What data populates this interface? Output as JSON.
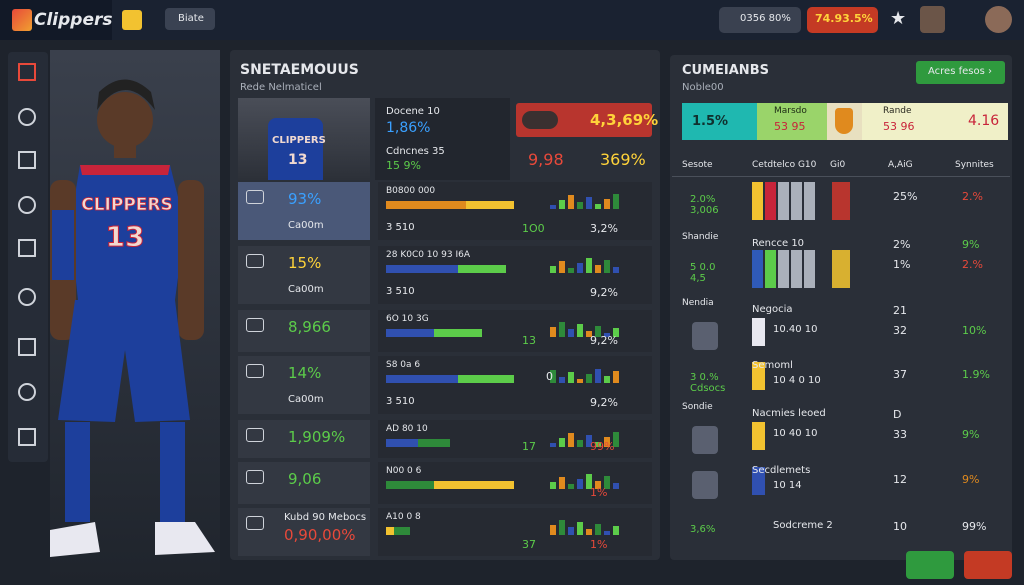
{
  "top_bar": {
    "logo": "Clippers",
    "tab": "Biate",
    "stat_pill": "0356 80%",
    "alert_pill": "74.93.5%"
  },
  "player_card": {
    "jersey_team": "CLIPPERS",
    "jersey_number": "13"
  },
  "stats_panel": {
    "title": "SNETAEMOUUS",
    "subtitle": "Rede Nelmaticel",
    "thumb_team": "CLIPPERS",
    "thumb_number": "13",
    "summary": {
      "label1": "Docene 10",
      "value1": "1,86%",
      "label2": "Cdncnes 35",
      "value2": "15 9%",
      "highlight": "4,3,69%",
      "mid": "9,98",
      "right": "369%"
    },
    "rows": [
      {
        "tile_value": "93%",
        "tile_label": "Ca00m",
        "bar_label": "B0800 000",
        "sub_left": "3 510",
        "sub_mid": "1O0",
        "sub_right": "3,2%"
      },
      {
        "tile_value": "15%",
        "tile_label": "Ca00m",
        "bar_label": "28 K0C0 10 93 I6A",
        "sub_left": "3 510",
        "sub_right": "9,2%"
      },
      {
        "tile_value": "8,966",
        "bar_label": "6O 10 3G",
        "sub_mid": "13",
        "sub_right": "9,2%"
      },
      {
        "tile_value": "14%",
        "tile_label": "Ca00m",
        "bar_label": "S8 0a 6",
        "bar_end": "0",
        "sub_left": "3 510",
        "sub_right": "9,2%"
      },
      {
        "tile_value": "1,909%",
        "bar_label": "AD 80 10",
        "sub_mid": "17",
        "sub_right": "99%"
      },
      {
        "tile_value": "9,06",
        "bar_label": "N00 0 6",
        "sub_right": "1%"
      },
      {
        "tile_label": "Kubd 90 Mebocs",
        "tile_value": "0,90,00%",
        "bar_label": "A10 0 8",
        "sub_mid": "37",
        "sub_right": "1%"
      }
    ]
  },
  "standings_panel": {
    "title": "CUMEIANBS",
    "subtitle": "Noble00",
    "button": "Acres fesos ›",
    "summary": {
      "left": "1.5%",
      "mid_label": "Marsdo",
      "mid_value": "53 95",
      "right_label": "Rande",
      "right_value": "53 96",
      "end": "4.16"
    },
    "header": [
      "Sesote",
      "Cetdtelco G10",
      "Gi0",
      "A,AiG",
      "Synnites"
    ],
    "rows": [
      {
        "badge": "2.0% 3,006",
        "value": "25%",
        "pct": "2.%"
      },
      {
        "label": "Shandie",
        "name": "Rencce 10",
        "value": "2%",
        "pct": "9%"
      },
      {
        "badge": "5 0.0 4,5",
        "value": "1%",
        "pct": "2.%"
      },
      {
        "label": "Nendia",
        "name": "Negocia",
        "value": "21"
      },
      {
        "name": "10.40 10",
        "value": "32",
        "pct": "10%"
      },
      {
        "badge": "3 0.% Cdsocs",
        "name": "Semoml",
        "name2": "10 4 0 10",
        "value": "37",
        "pct": "1.9%"
      },
      {
        "label": "Sondie",
        "name": "Nacmies leoed",
        "value": "D"
      },
      {
        "name": "10 40 10",
        "value": "33",
        "pct": "9%"
      },
      {
        "name": "Secdlemets",
        "name2": "10 14",
        "value": "12",
        "pct": "9%"
      },
      {
        "badge": "3,6%",
        "name": "Sodcreme 2",
        "value": "10",
        "pct": "99%"
      }
    ]
  }
}
